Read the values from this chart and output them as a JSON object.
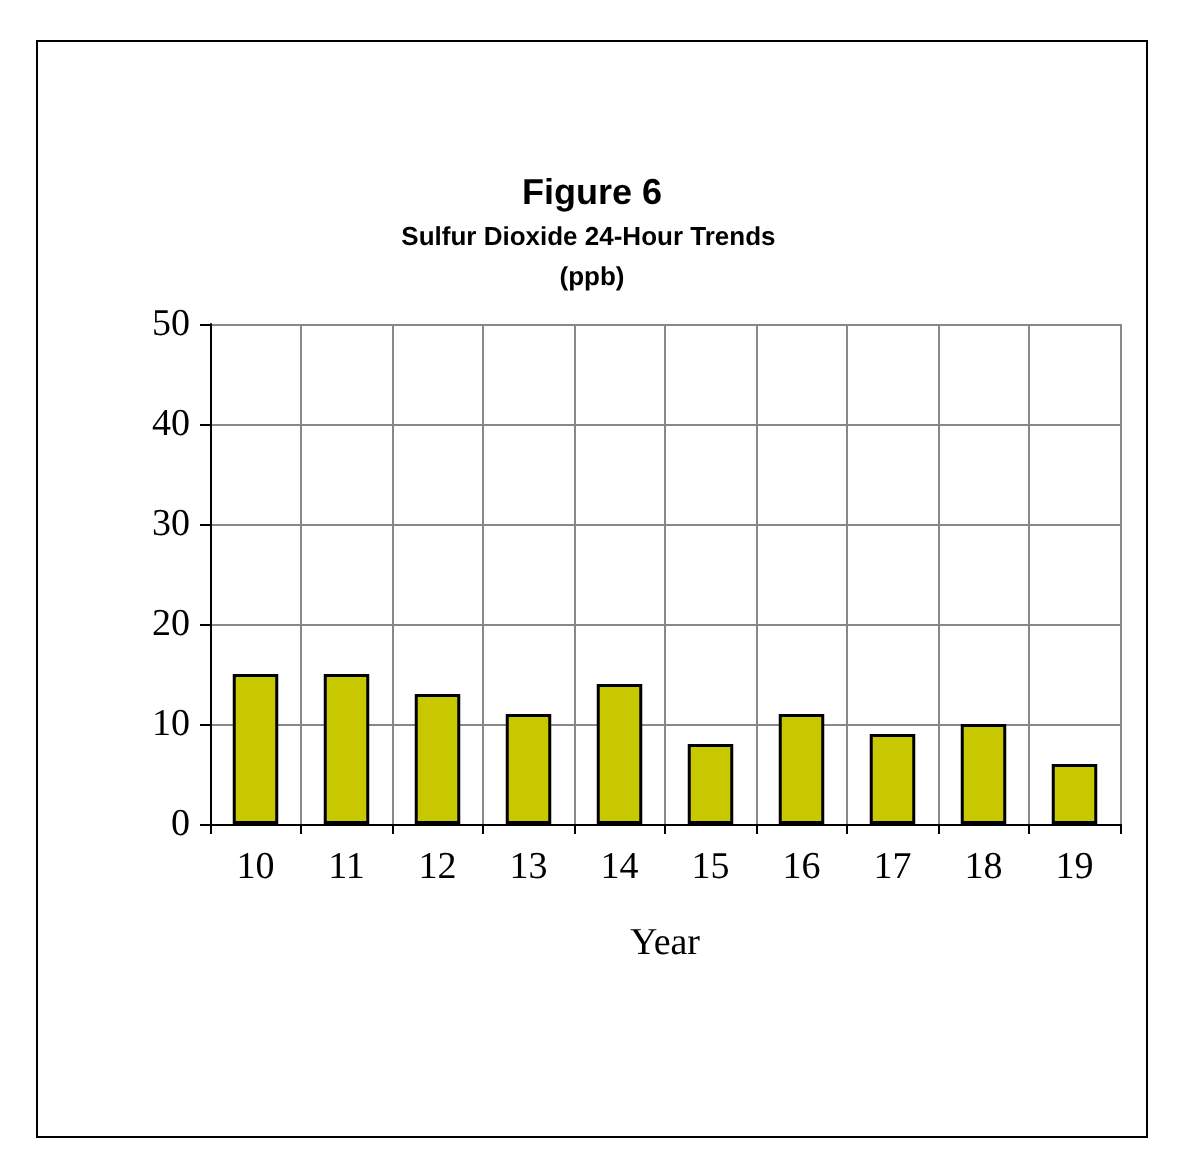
{
  "chart_data": {
    "type": "bar",
    "title": "Figure 6",
    "subtitle": "Sulfur Dioxide 24-Hour Trends (ppb)",
    "xlabel": "Year",
    "categories": [
      "10",
      "11",
      "12",
      "13",
      "14",
      "15",
      "16",
      "17",
      "18",
      "19"
    ],
    "values": [
      15,
      15,
      13,
      11,
      14,
      8,
      11,
      9,
      10,
      6
    ],
    "color": "#c8c800",
    "ylim": [
      0,
      50
    ],
    "yticks": [
      0,
      10,
      20,
      30,
      40,
      50
    ],
    "grid": true
  }
}
